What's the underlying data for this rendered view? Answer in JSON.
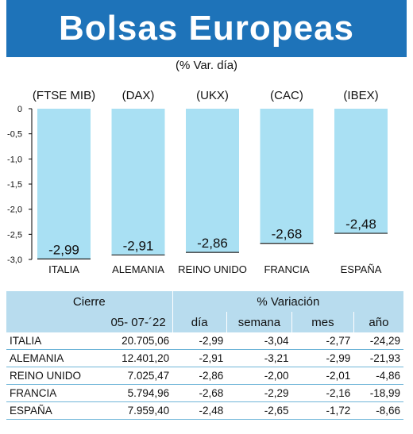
{
  "title": "Bolsas Europeas",
  "subtitle": "(% Var. día)",
  "chart_data": {
    "type": "bar",
    "categories": [
      "ITALIA",
      "ALEMANIA",
      "REINO UNIDO",
      "FRANCIA",
      "ESPAÑA"
    ],
    "indices": [
      "(FTSE MIB)",
      "(DAX)",
      "(UKX)",
      "(CAC)",
      "(IBEX)"
    ],
    "values": [
      -2.99,
      -2.91,
      -2.86,
      -2.68,
      -2.48
    ],
    "value_labels": [
      "-2,99",
      "-2,91",
      "-2,86",
      "-2,68",
      "-2,48"
    ],
    "ylim": [
      -3.0,
      0
    ],
    "yticks": [
      0,
      -0.5,
      -1.0,
      -1.5,
      -2.0,
      -2.5,
      -3.0
    ],
    "ytick_labels": [
      "0",
      "-0,5",
      "-1,0",
      "-1,5",
      "-2,0",
      "-2,5",
      "-3,0"
    ],
    "bar_color": "#a9e0f3",
    "grid": false
  },
  "table": {
    "header_cierre": "Cierre",
    "header_variacion": "% Variación",
    "date": "05- 07-´22",
    "col_dia": "día",
    "col_semana": "semana",
    "col_mes": "mes",
    "col_anio": "año",
    "rows": [
      {
        "country": "ITALIA",
        "cierre": "20.705,06",
        "dia": "-2,99",
        "semana": "-3,04",
        "mes": "-2,77",
        "anio": "-24,29"
      },
      {
        "country": "ALEMANIA",
        "cierre": "12.401,20",
        "dia": "-2,91",
        "semana": "-3,21",
        "mes": "-2,99",
        "anio": "-21,93"
      },
      {
        "country": "REINO UNIDO",
        "cierre": "7.025,47",
        "dia": "-2,86",
        "semana": "-2,00",
        "mes": "-2,01",
        "anio": "-4,86"
      },
      {
        "country": "FRANCIA",
        "cierre": "5.794,96",
        "dia": "-2,68",
        "semana": "-2,29",
        "mes": "-2,16",
        "anio": "-18,99"
      },
      {
        "country": "ESPAÑA",
        "cierre": "7.959,40",
        "dia": "-2,48",
        "semana": "-2,65",
        "mes": "-1,72",
        "anio": "-8,66"
      }
    ]
  },
  "colors": {
    "banner": "#1e73b9",
    "table_header": "#b8dcee",
    "row_line": "#6fb5d8"
  }
}
